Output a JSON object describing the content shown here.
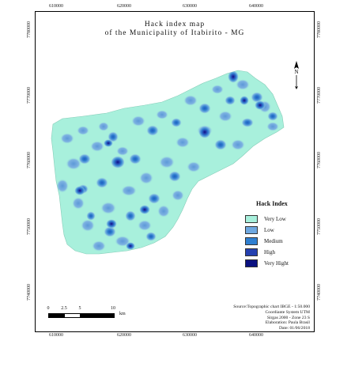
{
  "map": {
    "title_line1": "Hack index map",
    "title_line2": "of the Municipality of Itabirito - MG",
    "x_ticks": [
      "610000",
      "620000",
      "630000",
      "640000"
    ],
    "y_ticks": [
      "7780000",
      "7770000",
      "7760000",
      "7750000",
      "7740000"
    ],
    "north_label": "N"
  },
  "legend": {
    "title": "Hack Index",
    "items": [
      {
        "label": "Very Low",
        "color": "#a8f0dc"
      },
      {
        "label": "Low",
        "color": "#6fa8e0"
      },
      {
        "label": "Medium",
        "color": "#2f7fd0"
      },
      {
        "label": "High",
        "color": "#2440b0"
      },
      {
        "label": "Very Hight",
        "color": "#0a1080"
      }
    ]
  },
  "scale_bar": {
    "labels": [
      "0",
      "2.5",
      "5",
      "10"
    ],
    "unit": "km"
  },
  "credits": {
    "line1": "Source:Topographic chart IBGE - 1:50.000",
    "line2": "Coordiante System UTM",
    "line3": "Sirgas 2000 - Zone 23 S",
    "line4": "Elaboration: Paula Brasil",
    "line5": "Date: 01/06/2018"
  },
  "colors": {
    "very_low": "#a8f0dc",
    "low": "#6fa8e0",
    "medium": "#2f7fd0",
    "high": "#2440b0",
    "very_high": "#0a1080"
  }
}
